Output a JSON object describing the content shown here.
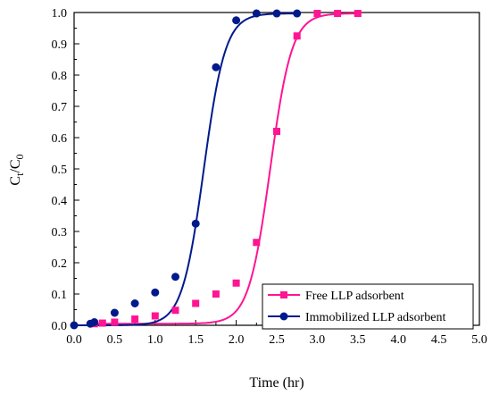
{
  "chart_data": {
    "type": "scatter",
    "xlabel": "Time (hr)",
    "ylabel": {
      "main": "C",
      "sub1": "t",
      "slash": "/C",
      "sub2": "0"
    },
    "xlim": [
      0.0,
      5.0
    ],
    "ylim": [
      0.0,
      1.0
    ],
    "x_ticks": [
      "0.0",
      "0.5",
      "1.0",
      "1.5",
      "2.0",
      "2.5",
      "3.0",
      "3.5",
      "4.0",
      "4.5",
      "5.0"
    ],
    "y_ticks": [
      "0.0",
      "0.1",
      "0.2",
      "0.3",
      "0.4",
      "0.5",
      "0.6",
      "0.7",
      "0.8",
      "0.9",
      "1.0"
    ],
    "grid": false,
    "legend_position": "bottom-right",
    "series": [
      {
        "name": "Free LLP adsorbent",
        "color": "#ff1493",
        "marker": "square",
        "points": [
          [
            0.25,
            0.005
          ],
          [
            0.35,
            0.007
          ],
          [
            0.5,
            0.01
          ],
          [
            0.75,
            0.02
          ],
          [
            1.0,
            0.03
          ],
          [
            1.25,
            0.048
          ],
          [
            1.5,
            0.07
          ],
          [
            1.75,
            0.1
          ],
          [
            2.0,
            0.135
          ],
          [
            2.25,
            0.265
          ],
          [
            2.5,
            0.62
          ],
          [
            2.75,
            0.925
          ],
          [
            3.0,
            0.997
          ],
          [
            3.25,
            0.997
          ],
          [
            3.5,
            0.997
          ]
        ],
        "fit": {
          "L": 1.0,
          "k": 7.5,
          "x0": 2.42
        }
      },
      {
        "name": "Immobilized LLP adsorbent",
        "color": "#001a8c",
        "marker": "circle",
        "points": [
          [
            0.0,
            0.0
          ],
          [
            0.2,
            0.005
          ],
          [
            0.25,
            0.01
          ],
          [
            0.5,
            0.04
          ],
          [
            0.75,
            0.07
          ],
          [
            1.0,
            0.105
          ],
          [
            1.25,
            0.155
          ],
          [
            1.5,
            0.325
          ],
          [
            1.75,
            0.825
          ],
          [
            2.0,
            0.975
          ],
          [
            2.25,
            0.997
          ],
          [
            2.5,
            0.997
          ],
          [
            2.75,
            0.997
          ]
        ],
        "fit": {
          "L": 1.0,
          "k": 7.5,
          "x0": 1.6
        }
      }
    ]
  }
}
